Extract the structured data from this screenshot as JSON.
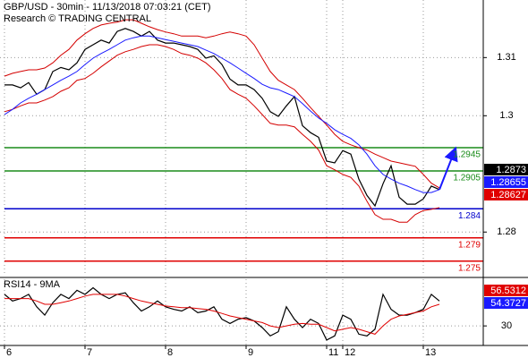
{
  "chart_data": [
    {
      "type": "line",
      "title": "GBP/USD - 30min - 11/13/2018 07:03:21 (CET)",
      "subtitle": "Research © TRADING CENTRAL",
      "ylim": [
        1.2725,
        1.3199
      ],
      "yticks": [
        1.28,
        1.3,
        1.31
      ],
      "grid": true,
      "series": [
        {
          "color": "#000000",
          "values": [
            1.3053,
            1.3053,
            1.3048,
            1.3057,
            1.3037,
            1.3045,
            1.3076,
            1.3083,
            1.3079,
            1.3091,
            1.3114,
            1.3122,
            1.313,
            1.3125,
            1.3145,
            1.315,
            1.3145,
            1.3137,
            1.3145,
            1.313,
            1.3125,
            1.3125,
            1.3122,
            1.3119,
            1.3114,
            1.3099,
            1.3103,
            1.3088,
            1.3063,
            1.3053,
            1.3053,
            1.3045,
            1.303,
            1.3007,
            1.2999,
            1.3017,
            1.3033,
            1.2983,
            1.2971,
            1.2963,
            1.2922,
            1.2919,
            1.294,
            1.2934,
            1.2891,
            1.2863,
            1.2845,
            1.2883,
            1.2914,
            1.286,
            1.2848,
            1.2848,
            1.2857,
            1.2879,
            1.2873
          ]
        },
        {
          "color": "#d40000",
          "values": [
            1.3068,
            1.3073,
            1.3076,
            1.3079,
            1.3079,
            1.3082,
            1.3091,
            1.3104,
            1.3114,
            1.313,
            1.3141,
            1.315,
            1.3156,
            1.3159,
            1.3161,
            1.3165,
            1.3165,
            1.3159,
            1.3153,
            1.3148,
            1.3144,
            1.3141,
            1.3137,
            1.3137,
            1.3137,
            1.3134,
            1.3137,
            1.3141,
            1.3144,
            1.3141,
            1.3137,
            1.3122,
            1.3099,
            1.3076,
            1.3061,
            1.3053,
            1.3045,
            1.303,
            1.3014,
            1.2999,
            1.2984,
            1.2968,
            1.2956,
            1.295,
            1.2945,
            1.2941,
            1.2934,
            1.2928,
            1.2922,
            1.2919,
            1.2916,
            1.2913,
            1.2899,
            1.2884,
            1.2876
          ]
        },
        {
          "color": "#d40000",
          "values": [
            1.3007,
            1.3011,
            1.3017,
            1.3022,
            1.3022,
            1.3027,
            1.3033,
            1.3042,
            1.3048,
            1.3061,
            1.3064,
            1.3073,
            1.3084,
            1.3094,
            1.3104,
            1.311,
            1.3114,
            1.3119,
            1.3122,
            1.3122,
            1.3119,
            1.3114,
            1.3107,
            1.3104,
            1.3099,
            1.3091,
            1.3079,
            1.3064,
            1.3045,
            1.3037,
            1.303,
            1.3017,
            1.3002,
            1.2987,
            1.2984,
            1.2984,
            1.2981,
            1.2968,
            1.2956,
            1.2941,
            1.2914,
            1.2907,
            1.2899,
            1.2894,
            1.2879,
            1.2853,
            1.283,
            1.2822,
            1.2822,
            1.2817,
            1.2817,
            1.283,
            1.2837,
            1.2839,
            1.2842
          ]
        },
        {
          "color": "#1a1aff",
          "values": [
            1.3002,
            1.3011,
            1.3022,
            1.303,
            1.3037,
            1.3045,
            1.3053,
            1.3061,
            1.3068,
            1.3076,
            1.3088,
            1.3099,
            1.3107,
            1.3114,
            1.3122,
            1.313,
            1.3134,
            1.3137,
            1.3137,
            1.3134,
            1.3131,
            1.3128,
            1.3125,
            1.3122,
            1.3119,
            1.3113,
            1.3107,
            1.3099,
            1.3091,
            1.3082,
            1.3073,
            1.3064,
            1.3054,
            1.3048,
            1.3045,
            1.3039,
            1.3033,
            1.3021,
            1.3008,
            1.2996,
            1.2987,
            1.2976,
            1.2968,
            1.2961,
            1.295,
            1.2934,
            1.2914,
            1.2899,
            1.2891,
            1.2884,
            1.2879,
            1.2873,
            1.2868,
            1.2868,
            1.2873
          ]
        }
      ],
      "levels": [
        {
          "value": 1.2945,
          "color": "#1a8c1a"
        },
        {
          "value": 1.2905,
          "color": "#1a8c1a"
        },
        {
          "value": 1.284,
          "color": "#0000cc"
        },
        {
          "value": 1.279,
          "color": "#e00000"
        },
        {
          "value": 1.275,
          "color": "#e00000"
        }
      ],
      "price_labels": [
        {
          "value": 1.2873,
          "color": "#000000"
        },
        {
          "value": 1.28655,
          "color": "#1a1aff"
        },
        {
          "value": 1.28627,
          "color": "#e00000"
        }
      ]
    },
    {
      "type": "line",
      "title": "RSI14 - 9MA",
      "ylim": [
        12,
        75
      ],
      "yticks": [
        30
      ],
      "grid": true,
      "categories": [
        "6",
        null,
        null,
        null,
        null,
        null,
        null,
        null,
        null,
        null,
        "7",
        null,
        null,
        null,
        null,
        null,
        null,
        null,
        null,
        null,
        "8",
        null,
        null,
        null,
        null,
        null,
        null,
        null,
        null,
        null,
        "9",
        null,
        null,
        null,
        null,
        null,
        null,
        null,
        null,
        null,
        "11",
        null,
        "12",
        null,
        null,
        null,
        null,
        null,
        null,
        null,
        null,
        null,
        "13",
        null,
        null
      ],
      "series": [
        {
          "color": "#000000",
          "values": [
            60.4,
            54,
            56.4,
            60.4,
            48.4,
            40.4,
            52.4,
            60.4,
            56.4,
            64.4,
            60.4,
            66.8,
            60.4,
            56.4,
            60.4,
            62,
            52.4,
            44.4,
            48.4,
            54,
            48.4,
            46,
            44.4,
            48.4,
            42.8,
            44.4,
            48.4,
            36.4,
            32.4,
            36.4,
            38,
            34.8,
            28.4,
            20.4,
            24.4,
            48.4,
            36.4,
            28.4,
            36.4,
            32.4,
            16.4,
            20.4,
            40.4,
            36.4,
            22,
            20.4,
            26.8,
            60.4,
            46,
            40.4,
            40.4,
            42.8,
            46,
            60.4,
            54
          ]
        },
        {
          "color": "#e00000",
          "values": [
            56.4,
            56.4,
            56.4,
            56.4,
            54,
            50.8,
            50.8,
            52.4,
            54,
            56.4,
            58.8,
            60.4,
            60.4,
            60.4,
            60.4,
            58.8,
            56.4,
            54,
            52.4,
            50.8,
            49.2,
            48.4,
            47.6,
            47.6,
            46.8,
            46,
            44.4,
            42,
            39.6,
            38,
            36.4,
            34.8,
            33.2,
            30,
            28.4,
            30,
            31.6,
            32.4,
            31.6,
            31.6,
            28.4,
            25.2,
            26.8,
            28.4,
            26.8,
            24.4,
            22,
            30,
            36.4,
            39.6,
            41.2,
            42.8,
            44.4,
            48.4,
            50.8
          ]
        }
      ],
      "price_labels": [
        {
          "value": 56.5312,
          "color": "#e00000"
        },
        {
          "value": 54.3727,
          "color": "#1a1aff"
        }
      ]
    }
  ]
}
